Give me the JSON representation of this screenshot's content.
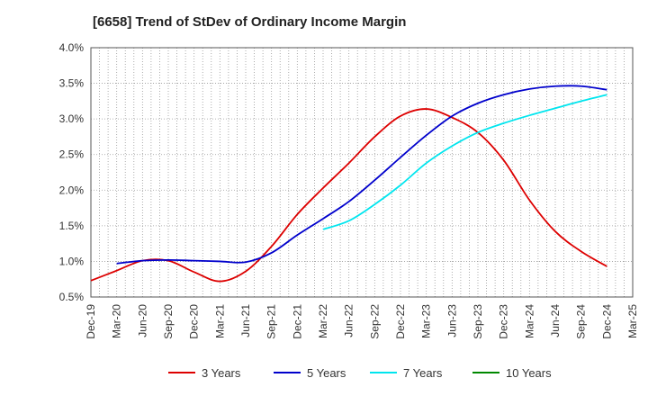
{
  "chart_data": {
    "type": "line",
    "title": "[6658]  Trend of StDev of Ordinary Income Margin",
    "xlabel": "",
    "ylabel": "",
    "x": [
      "Dec-19",
      "Mar-20",
      "Jun-20",
      "Sep-20",
      "Dec-20",
      "Mar-21",
      "Jun-21",
      "Sep-21",
      "Dec-21",
      "Mar-22",
      "Jun-22",
      "Sep-22",
      "Dec-22",
      "Mar-23",
      "Jun-23",
      "Sep-23",
      "Dec-23",
      "Mar-24",
      "Jun-24",
      "Sep-24",
      "Dec-24",
      "Mar-25"
    ],
    "ylim": [
      0.5,
      4.0
    ],
    "yticks": [
      "0.5%",
      "1.0%",
      "1.5%",
      "2.0%",
      "2.5%",
      "3.0%",
      "3.5%",
      "4.0%"
    ],
    "grid": true,
    "legend_position": "bottom",
    "series": [
      {
        "name": "3 Years",
        "color": "#dd0000",
        "values": [
          0.73,
          0.87,
          1.01,
          1.01,
          0.85,
          0.72,
          0.86,
          1.21,
          1.66,
          2.03,
          2.38,
          2.75,
          3.04,
          3.14,
          3.02,
          2.81,
          2.42,
          1.86,
          1.42,
          1.14,
          0.93,
          null
        ]
      },
      {
        "name": "5 Years",
        "color": "#0000cc",
        "values": [
          null,
          0.97,
          1.01,
          1.02,
          1.01,
          1.0,
          0.99,
          1.12,
          1.37,
          1.6,
          1.84,
          2.14,
          2.46,
          2.77,
          3.04,
          3.22,
          3.34,
          3.42,
          3.46,
          3.46,
          3.41,
          null
        ]
      },
      {
        "name": "7 Years",
        "color": "#00e5ee",
        "values": [
          null,
          null,
          null,
          null,
          null,
          null,
          null,
          null,
          null,
          1.45,
          1.57,
          1.8,
          2.07,
          2.38,
          2.62,
          2.81,
          2.94,
          3.05,
          3.15,
          3.25,
          3.34,
          null
        ]
      },
      {
        "name": "10 Years",
        "color": "#008800",
        "values": [
          null,
          null,
          null,
          null,
          null,
          null,
          null,
          null,
          null,
          null,
          null,
          null,
          null,
          null,
          null,
          null,
          null,
          null,
          null,
          null,
          null,
          null
        ]
      }
    ]
  }
}
